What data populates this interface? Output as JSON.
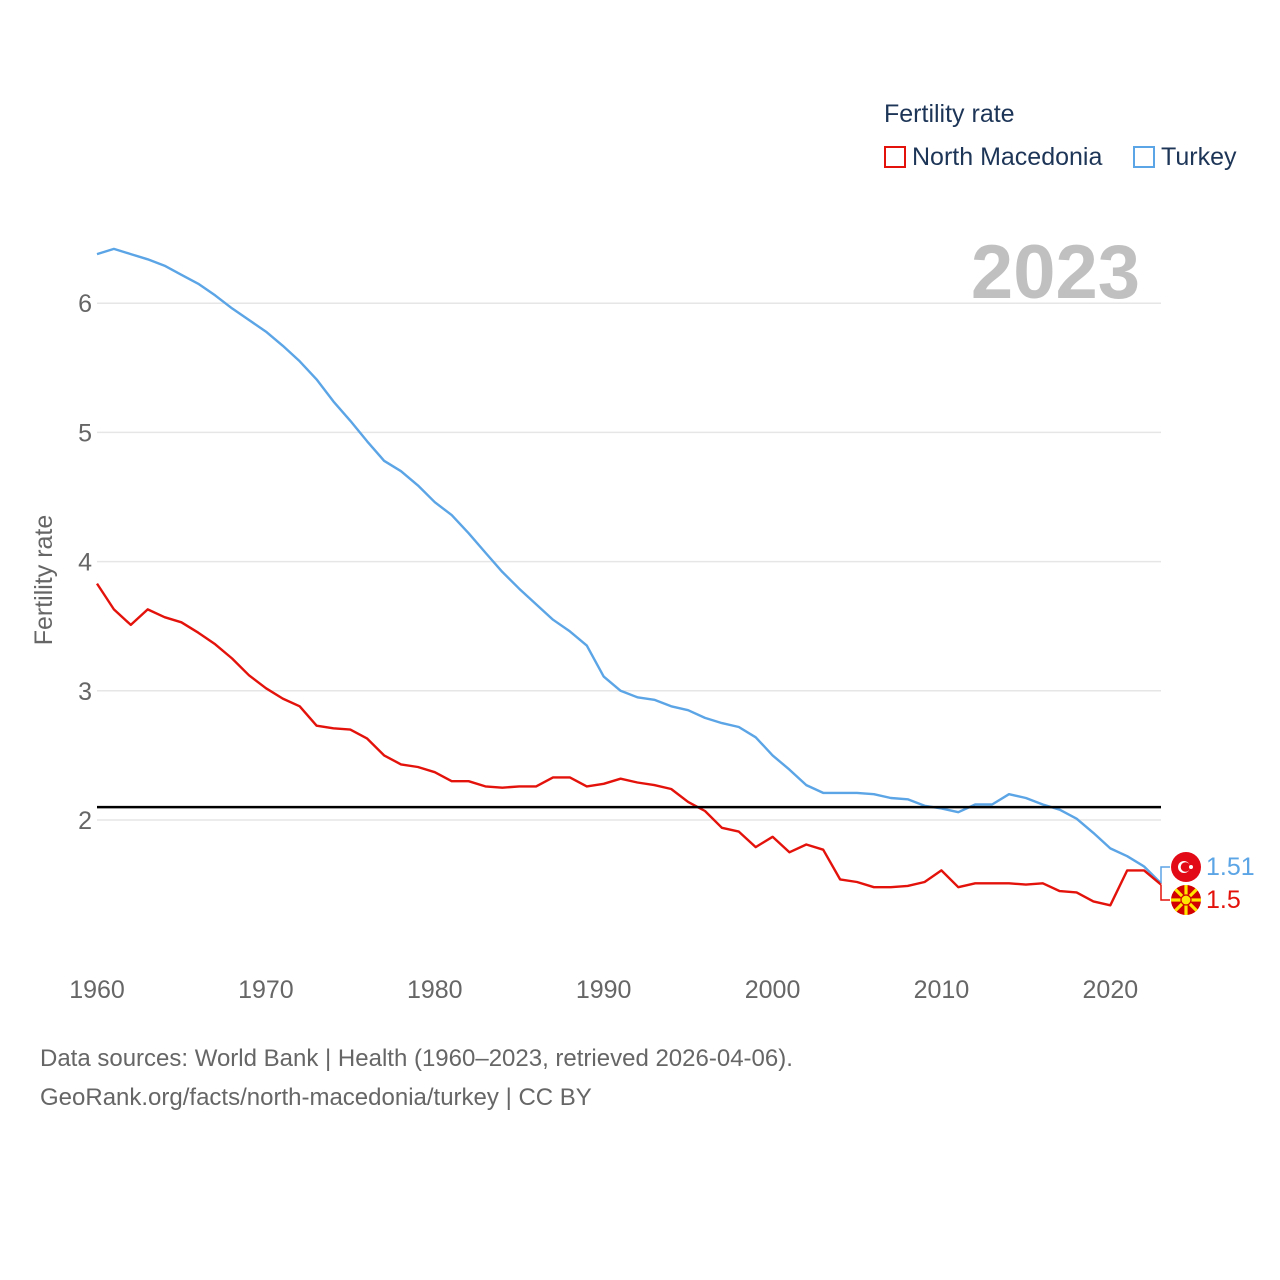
{
  "legend": {
    "title": "Fertility rate",
    "items": [
      {
        "label": "North Macedonia",
        "color": "#e3120b"
      },
      {
        "label": "Turkey",
        "color": "#5ba4e5"
      }
    ]
  },
  "footer": {
    "line1": "Data sources: World Bank | Health (1960–2023, retrieved 2026-04-06).",
    "line2": "GeoRank.org/facts/north-macedonia/turkey | CC BY"
  },
  "chart_data": {
    "type": "line",
    "year_label": "2023",
    "ylabel": "Fertility rate",
    "xlim": [
      1960,
      2023
    ],
    "ylim": [
      1,
      6.6
    ],
    "yticks": [
      2,
      3,
      4,
      5,
      6
    ],
    "xticks": [
      1960,
      1970,
      1980,
      1990,
      2000,
      2010,
      2020
    ],
    "reference_line": 2.1,
    "x": [
      1960,
      1961,
      1962,
      1963,
      1964,
      1965,
      1966,
      1967,
      1968,
      1969,
      1970,
      1971,
      1972,
      1973,
      1974,
      1975,
      1976,
      1977,
      1978,
      1979,
      1980,
      1981,
      1982,
      1983,
      1984,
      1985,
      1986,
      1987,
      1988,
      1989,
      1990,
      1991,
      1992,
      1993,
      1994,
      1995,
      1996,
      1997,
      1998,
      1999,
      2000,
      2001,
      2002,
      2003,
      2004,
      2005,
      2006,
      2007,
      2008,
      2009,
      2010,
      2011,
      2012,
      2013,
      2014,
      2015,
      2016,
      2017,
      2018,
      2019,
      2020,
      2021,
      2022,
      2023
    ],
    "series": [
      {
        "name": "Turkey",
        "color": "#5ba4e5",
        "end_label": "1.51",
        "values": [
          6.38,
          6.42,
          6.38,
          6.34,
          6.29,
          6.22,
          6.15,
          6.06,
          5.96,
          5.87,
          5.78,
          5.67,
          5.55,
          5.41,
          5.24,
          5.09,
          4.93,
          4.78,
          4.7,
          4.59,
          4.46,
          4.36,
          4.22,
          4.07,
          3.92,
          3.79,
          3.67,
          3.55,
          3.46,
          3.35,
          3.11,
          3.0,
          2.95,
          2.93,
          2.88,
          2.85,
          2.79,
          2.75,
          2.72,
          2.64,
          2.5,
          2.39,
          2.27,
          2.21,
          2.21,
          2.21,
          2.2,
          2.17,
          2.16,
          2.11,
          2.09,
          2.06,
          2.12,
          2.12,
          2.2,
          2.17,
          2.12,
          2.08,
          2.01,
          1.9,
          1.78,
          1.72,
          1.64,
          1.51
        ]
      },
      {
        "name": "North Macedonia",
        "color": "#e3120b",
        "end_label": "1.5",
        "values": [
          3.83,
          3.63,
          3.51,
          3.63,
          3.57,
          3.53,
          3.45,
          3.36,
          3.25,
          3.12,
          3.02,
          2.94,
          2.88,
          2.73,
          2.71,
          2.7,
          2.63,
          2.5,
          2.43,
          2.41,
          2.37,
          2.3,
          2.3,
          2.26,
          2.25,
          2.26,
          2.26,
          2.33,
          2.33,
          2.26,
          2.28,
          2.32,
          2.29,
          2.27,
          2.24,
          2.14,
          2.07,
          1.94,
          1.91,
          1.79,
          1.87,
          1.75,
          1.81,
          1.77,
          1.54,
          1.52,
          1.48,
          1.48,
          1.49,
          1.52,
          1.61,
          1.48,
          1.51,
          1.51,
          1.51,
          1.5,
          1.51,
          1.45,
          1.44,
          1.37,
          1.34,
          1.61,
          1.61,
          1.5
        ]
      }
    ]
  },
  "sources": "Data sources: World Bank | Health (1960–2023, retrieved 2026-04-06)."
}
